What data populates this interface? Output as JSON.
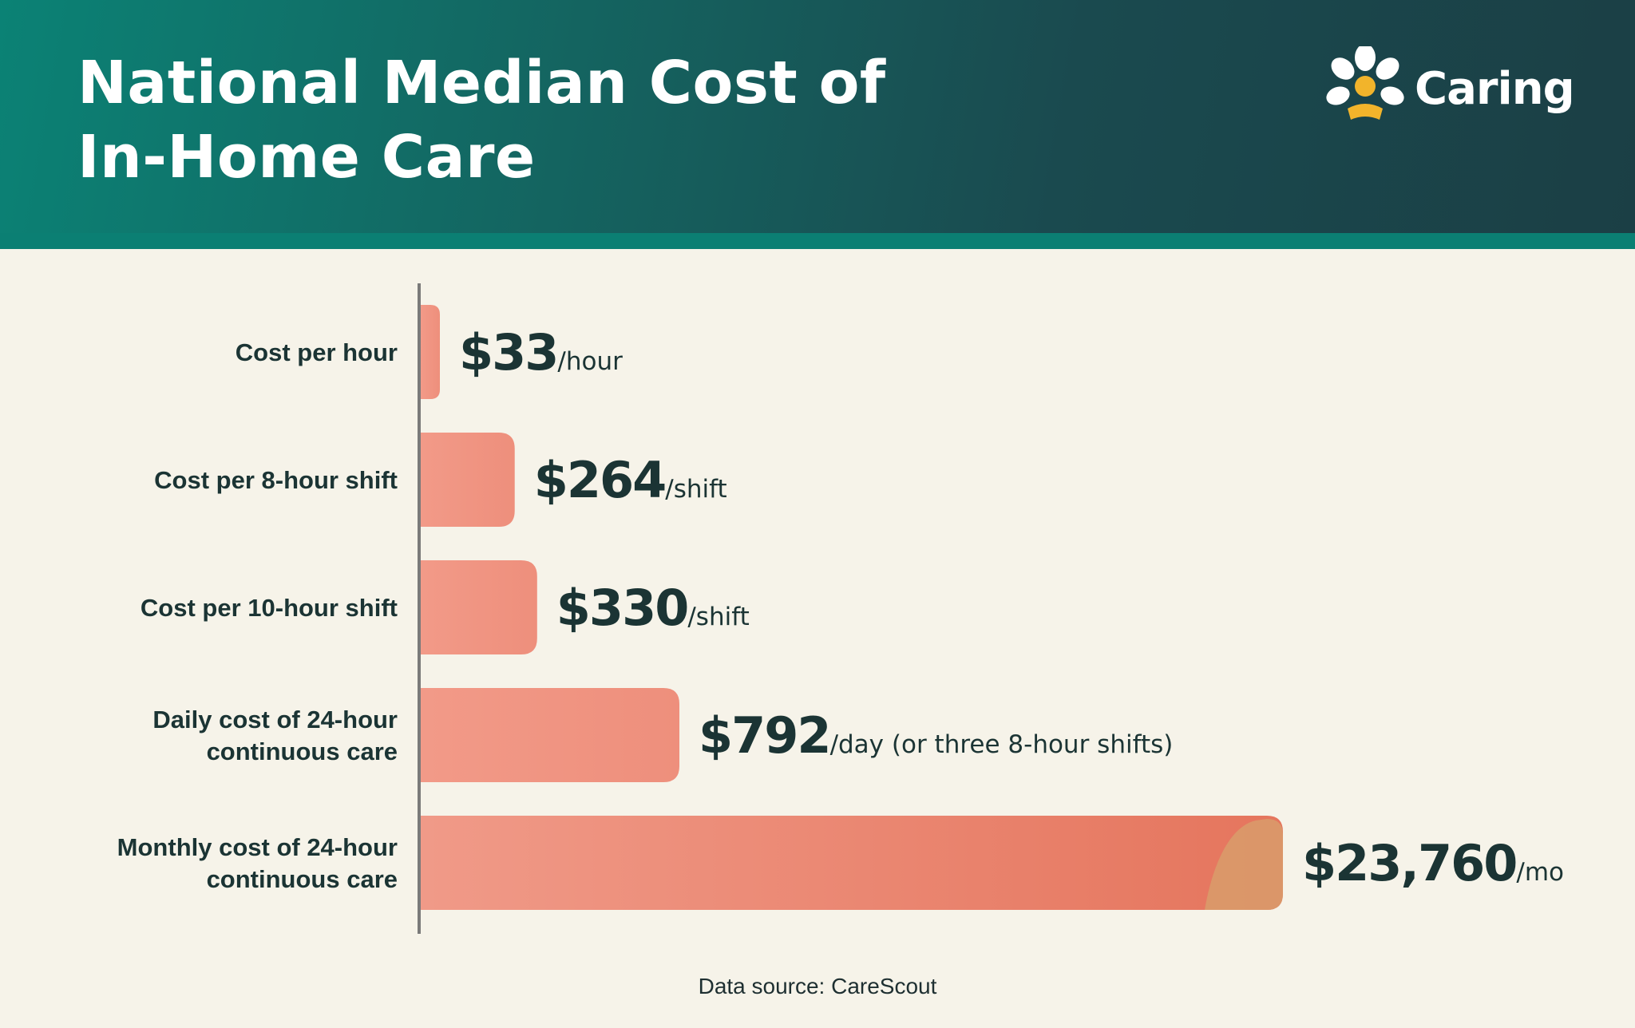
{
  "title": {
    "line1": "National Median Cost of",
    "line2": "In-Home Care"
  },
  "logo": {
    "text": "Caring",
    "icon": "flower-person-icon"
  },
  "colors": {
    "header_start": "#0b8275",
    "header_end": "#1b3f45",
    "bar_light": "#f09a88",
    "bar_dark": "#e5755d",
    "bar_accent": "#d99a6a",
    "text_dark": "#1b3434",
    "axis": "#7a7a7a",
    "background": "#f6f3e9"
  },
  "chart_data": {
    "type": "bar",
    "orientation": "horizontal",
    "categories": [
      [
        "Cost per hour"
      ],
      [
        "Cost per 8-hour shift"
      ],
      [
        "Cost per 10-hour shift"
      ],
      [
        "Daily cost of 24-hour",
        "continuous care"
      ],
      [
        "Monthly cost of 24-hour",
        "continuous care"
      ]
    ],
    "values": [
      33,
      264,
      330,
      792,
      23760
    ],
    "value_labels": [
      "$33",
      "$264",
      "$330",
      "$792",
      "$23,760"
    ],
    "unit_labels": [
      "/hour",
      "/shift",
      "/shift",
      "/day (or three 8-hour shifts)",
      "/mo"
    ],
    "bar_fractions": [
      0.022,
      0.109,
      0.135,
      0.3,
      1.0
    ]
  },
  "footer": {
    "source": "Data source: CareScout"
  }
}
